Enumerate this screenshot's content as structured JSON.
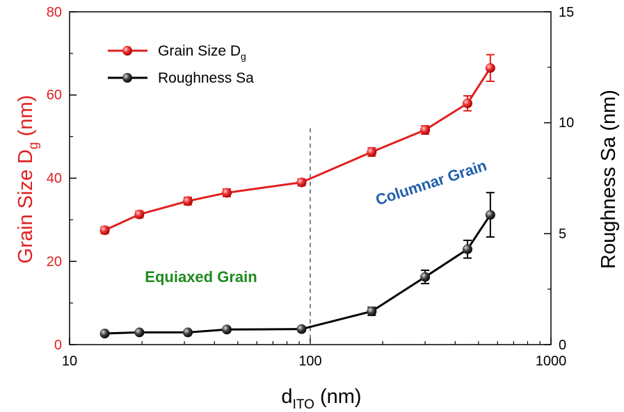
{
  "chart_data": {
    "type": "line",
    "x_scale": "log",
    "xlim": [
      10,
      1000
    ],
    "x_ticks": [
      10,
      100,
      1000
    ],
    "x_tick_labels": [
      "10",
      "100",
      "1000"
    ],
    "ylim_left": [
      0,
      80
    ],
    "y_left_ticks": [
      0,
      20,
      40,
      60,
      80
    ],
    "y_left_tick_labels": [
      "0",
      "20",
      "40",
      "60",
      "80"
    ],
    "ylim_right": [
      0,
      15
    ],
    "y_right_ticks": [
      0,
      5,
      10,
      15
    ],
    "y_right_tick_labels": [
      "0",
      "5",
      "10",
      "15"
    ],
    "xlabel": {
      "main": "d",
      "sub": "ITO",
      "unit": " (nm)"
    },
    "ylabel_left": {
      "main": "Grain Size D",
      "sub": "g",
      "unit": " (nm)"
    },
    "ylabel_right": "Roughness Sa (nm)",
    "grid": false,
    "legend_position": "top-left",
    "divider_x": 100,
    "series": [
      {
        "name_main": "Grain Size D",
        "name_sub": "g",
        "axis": "left",
        "color": "#e02020",
        "x": [
          14,
          19.5,
          31,
          45,
          92,
          180,
          300,
          450,
          560
        ],
        "y": [
          27.5,
          31.3,
          34.5,
          36.5,
          39,
          46.3,
          51.6,
          58,
          66.5
        ],
        "err": [
          0.8,
          0.8,
          0.9,
          0.9,
          0.8,
          1.0,
          1.0,
          1.8,
          3.2
        ]
      },
      {
        "name": "Roughness Sa",
        "axis": "right",
        "color": "#000000",
        "x": [
          14,
          19.5,
          31,
          45,
          92,
          180,
          300,
          450,
          560
        ],
        "y": [
          0.5,
          0.55,
          0.55,
          0.68,
          0.7,
          1.5,
          3.05,
          4.3,
          5.85
        ],
        "err": [
          0.08,
          0.08,
          0.08,
          0.1,
          0.1,
          0.18,
          0.3,
          0.4,
          1.0
        ]
      }
    ],
    "annotations": [
      {
        "text": "Equiaxed Grain",
        "color": "#1f8a1f"
      },
      {
        "text": "Columnar Grain",
        "color": "#1f5fae"
      }
    ]
  }
}
